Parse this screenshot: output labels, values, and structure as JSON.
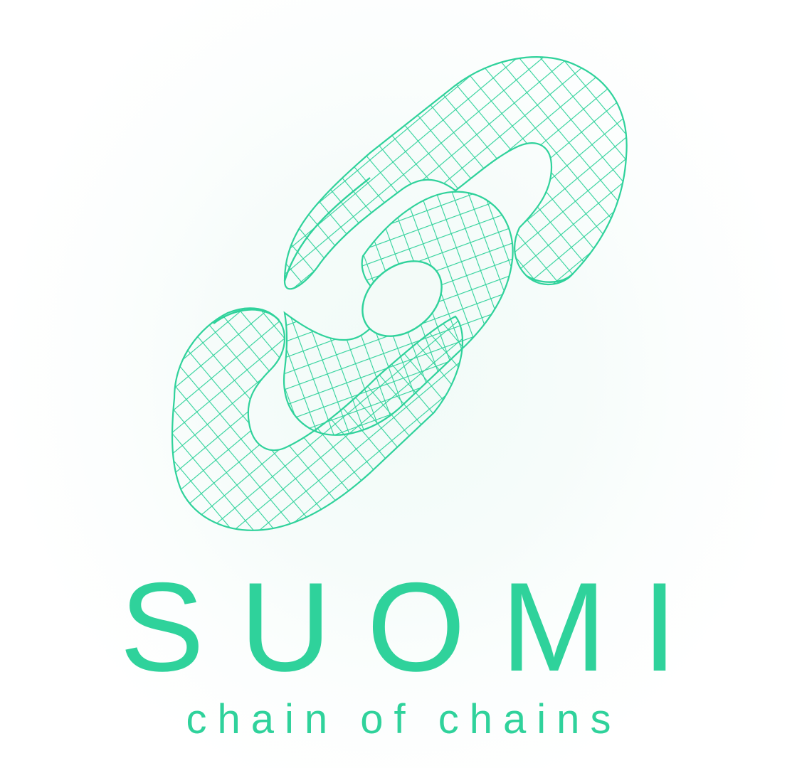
{
  "brand": {
    "name": "SUOMI",
    "tagline": "chain of chains",
    "logo_icon": "chain-link-icon"
  },
  "colors": {
    "accent": "#2fd29b",
    "background": "#ffffff",
    "glow": "#f1fbf8"
  }
}
